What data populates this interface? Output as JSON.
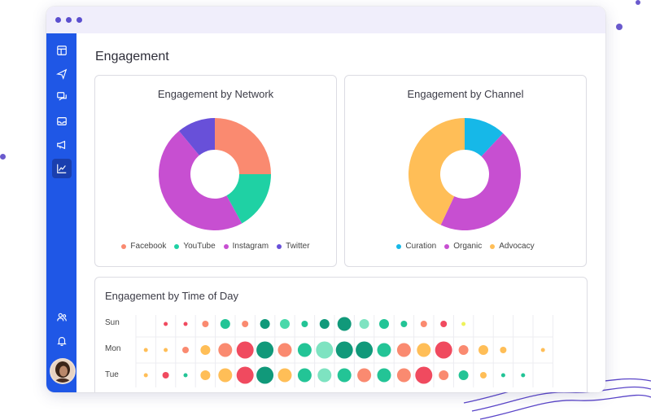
{
  "colors": {
    "sidebar": "#1f57e6",
    "facebook": "#fa8a70",
    "youtube": "#1fd1a4",
    "instagram": "#c74fd1",
    "twitter": "#6850d9",
    "curation": "#16b8e8",
    "organic": "#c74fd1",
    "advocacy": "#ffbe57"
  },
  "sidebar": {
    "items": [
      {
        "icon": "dashboard-icon"
      },
      {
        "icon": "send-icon"
      },
      {
        "icon": "messages-icon"
      },
      {
        "icon": "inbox-icon"
      },
      {
        "icon": "megaphone-icon"
      },
      {
        "icon": "analytics-icon",
        "active": true
      },
      {
        "icon": "users-icon"
      },
      {
        "icon": "bell-icon"
      }
    ]
  },
  "page": {
    "title": "Engagement"
  },
  "network_card": {
    "title": "Engagement by Network",
    "legend": [
      "Facebook",
      "YouTube",
      "Instagram",
      "Twitter"
    ]
  },
  "channel_card": {
    "title": "Engagement by Channel",
    "legend": [
      "Curation",
      "Organic",
      "Advocacy"
    ]
  },
  "tod_card": {
    "title": "Engagement by Time of Day",
    "rows": [
      "Sun",
      "Mon",
      "Tue"
    ]
  },
  "chart_data": [
    {
      "type": "pie",
      "title": "Engagement by Network",
      "categories": [
        "Facebook",
        "YouTube",
        "Instagram",
        "Twitter"
      ],
      "values": [
        25,
        17,
        47,
        11
      ],
      "colors": [
        "#fa8a70",
        "#1fd1a4",
        "#c74fd1",
        "#6850d9"
      ]
    },
    {
      "type": "pie",
      "title": "Engagement by Channel",
      "categories": [
        "Curation",
        "Organic",
        "Advocacy"
      ],
      "values": [
        12,
        45,
        43
      ],
      "colors": [
        "#16b8e8",
        "#c74fd1",
        "#ffbe57"
      ]
    },
    {
      "type": "heatmap",
      "title": "Engagement by Time of Day",
      "rows": [
        "Sun",
        "Mon",
        "Tue"
      ],
      "columns": 21,
      "values": [
        [
          0,
          1,
          1,
          2,
          3,
          2,
          3,
          3,
          2,
          3,
          4,
          3,
          3,
          2,
          2,
          2,
          1,
          0,
          0,
          0,
          0
        ],
        [
          1,
          1,
          2,
          3,
          4,
          5,
          5,
          4,
          4,
          5,
          5,
          5,
          4,
          4,
          4,
          5,
          3,
          3,
          2,
          1,
          1
        ],
        [
          1,
          2,
          1,
          3,
          4,
          5,
          5,
          4,
          4,
          4,
          4,
          4,
          4,
          4,
          5,
          3,
          3,
          2,
          1,
          1,
          0
        ]
      ],
      "colors": [
        [
          "#ffffff",
          "#f04a5f",
          "#f04a5f",
          "#fa8a70",
          "#23c496",
          "#fa8a70",
          "#11997a",
          "#49d8aa",
          "#23c496",
          "#11997a",
          "#11997a",
          "#7ee3c1",
          "#23c496",
          "#23c496",
          "#fa8a70",
          "#f04a5f",
          "#eef25a",
          "#ffbe57",
          "#ffbe57",
          "#ffffff",
          "#ffffff"
        ],
        [
          "#ffbe57",
          "#ffbe57",
          "#fa8a70",
          "#ffbe57",
          "#fa8a70",
          "#f04a5f",
          "#11997a",
          "#fa8a70",
          "#23c496",
          "#7ee3c1",
          "#11997a",
          "#11997a",
          "#23c496",
          "#fa8a70",
          "#ffbe57",
          "#f04a5f",
          "#fa8a70",
          "#ffbe57",
          "#ffbe57",
          "#ffffff",
          "#ffbe57"
        ],
        [
          "#ffbe57",
          "#f04a5f",
          "#23c496",
          "#ffbe57",
          "#ffbe57",
          "#f04a5f",
          "#11997a",
          "#ffbe57",
          "#23c496",
          "#7ee3c1",
          "#23c496",
          "#fa8a70",
          "#23c496",
          "#fa8a70",
          "#f04a5f",
          "#fa8a70",
          "#23c496",
          "#ffbe57",
          "#23c496",
          "#23c496",
          "#ffffff"
        ]
      ]
    }
  ]
}
